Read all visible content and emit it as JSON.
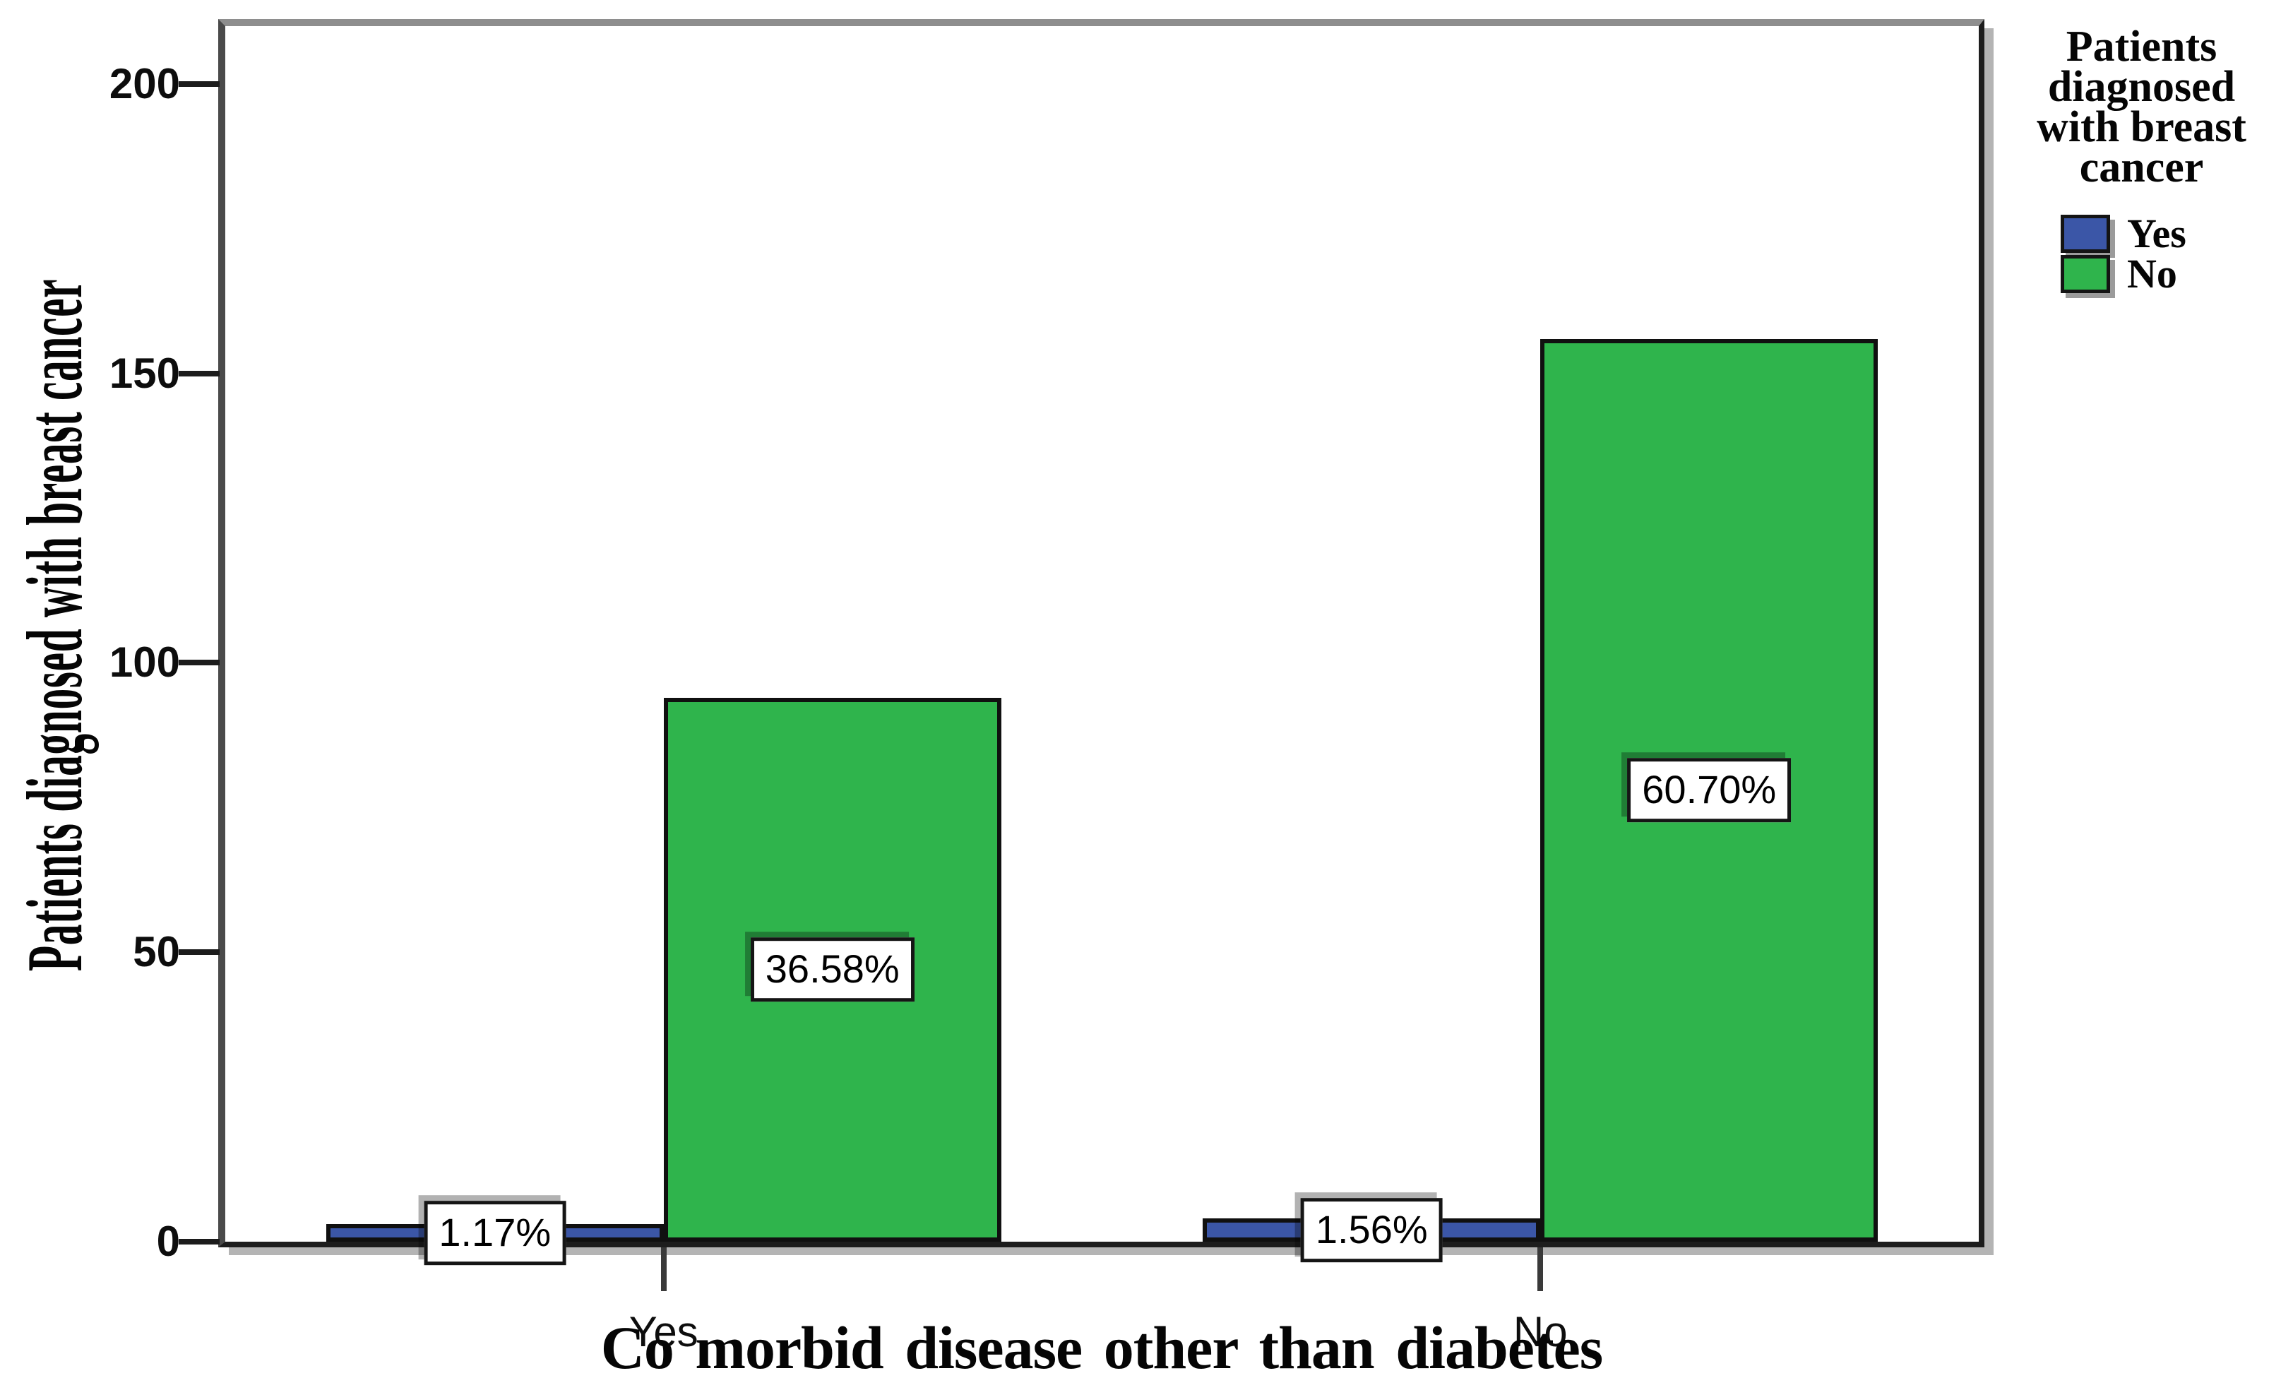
{
  "legend": {
    "title": "Patients diagnosed with breast cancer",
    "entries": [
      {
        "label": "Yes",
        "color": "#3B56A7"
      },
      {
        "label": "No",
        "color": "#2FB44C"
      }
    ]
  },
  "chart_data": {
    "type": "bar",
    "title": "",
    "xlabel": "Co morbid disease other than diabetes",
    "ylabel": "Patients diagnosed with breast cancer",
    "categories": [
      "Yes",
      "No"
    ],
    "series": [
      {
        "name": "Yes",
        "color": "#3B56A7",
        "values": [
          3,
          4
        ],
        "percent_labels": [
          "1.17%",
          "1.56%"
        ]
      },
      {
        "name": "No",
        "color": "#2FB44C",
        "values": [
          94,
          156
        ],
        "percent_labels": [
          "36.58%",
          "60.70%"
        ]
      }
    ],
    "yticks": [
      0,
      50,
      100,
      150,
      200
    ],
    "ylim": [
      0,
      210
    ],
    "grid": false,
    "legend_position": "top-right",
    "legend_title": "Patients diagnosed with breast cancer",
    "bar_label_style": "white box, black border, centered at bar mid-height"
  }
}
